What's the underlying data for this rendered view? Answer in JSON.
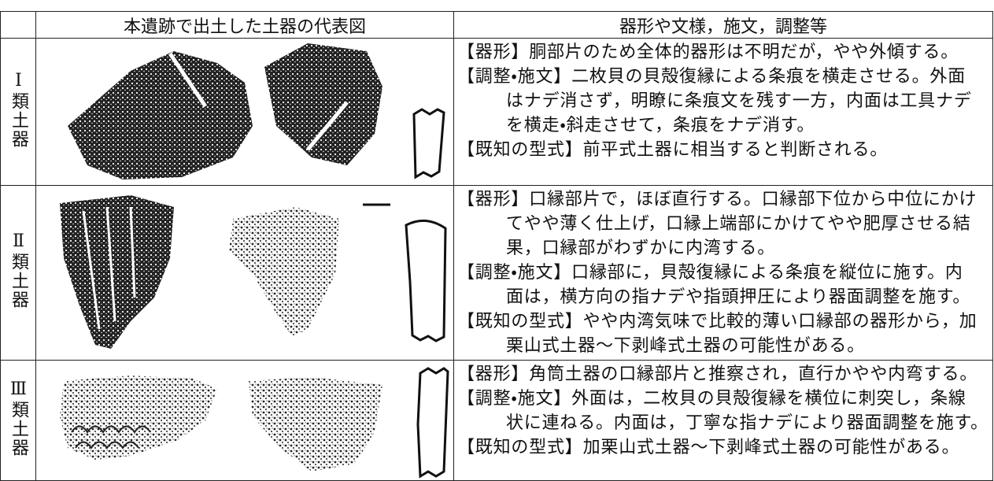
{
  "header": {
    "columns": [
      "本遺跡で出土した土器の代表図",
      "器形や文様，施文，調整等"
    ]
  },
  "rows": [
    {
      "label": "Ⅰ類土器",
      "items": [
        {
          "lines": [
            "【器形】胴部片のため全体的器形は不明だが，やや外傾する。"
          ]
        },
        {
          "lines": [
            "【調整・施文】二枚貝の貝殻復縁による条痕を横走させる。外面",
            "はナデ消さず，明瞭に条痕文を残す一方，内面は工具ナデ",
            "を横走・斜走させて，条痕をナデ消す。"
          ]
        },
        {
          "lines": [
            "【既知の型式】前平式土器に相当すると判断される。"
          ]
        }
      ]
    },
    {
      "label": "Ⅱ類土器",
      "items": [
        {
          "lines": [
            "【器形】口縁部片で，ほぼ直行する。口縁部下位から中位にかけ",
            "てやや薄く仕上げ，口縁上端部にかけてやや肥厚させる結",
            "果，口縁部がわずかに内湾する。"
          ]
        },
        {
          "lines": [
            "【調整・施文】口縁部に，貝殻復縁による条痕を縦位に施す。内",
            "面は，横方向の指ナデや指頭押圧により器面調整を施す。"
          ]
        },
        {
          "lines": [
            "【既知の型式】やや内湾気味で比較的薄い口縁部の器形から，加",
            "栗山式土器～下剥峰式土器の可能性がある。"
          ]
        }
      ]
    },
    {
      "label": "Ⅲ類土器",
      "items": [
        {
          "lines": [
            "【器形】角筒土器の口縁部片と推察され，直行かやや内弯する。"
          ]
        },
        {
          "lines": [
            "【調整・施文】外面は，二枚貝の貝殻復縁を横位に刺突し，条線",
            "状に連ねる。内面は，丁寧な指ナデにより器面調整を施す。"
          ]
        },
        {
          "lines": [
            "【既知の型式】加栗山式土器～下剥峰式土器の可能性がある。"
          ]
        }
      ]
    }
  ]
}
